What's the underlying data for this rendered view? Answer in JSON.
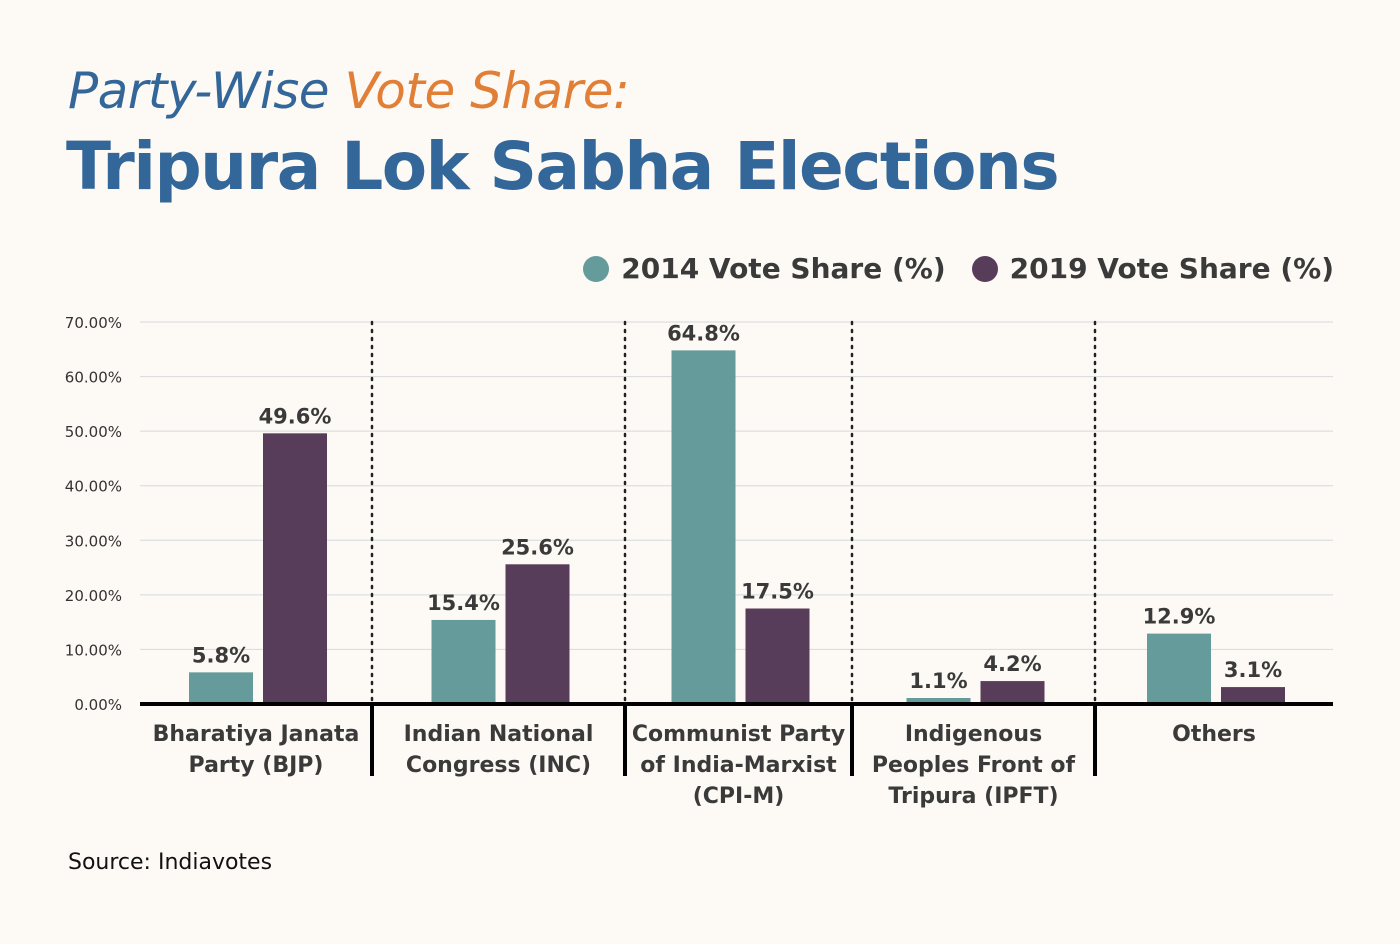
{
  "title": {
    "part1": "Party-Wise",
    "part2": "Vote Share:",
    "line2": "Tripura Lok Sabha Elections"
  },
  "colors": {
    "title_blue": "#336699",
    "title_orange": "#e07f35",
    "series_2014": "#659b9b",
    "series_2019": "#573d59",
    "text_dark": "#3a3a3a"
  },
  "source": "Source: Indiavotes",
  "chart_data": {
    "type": "bar",
    "categories": [
      [
        "Bharatiya Janata",
        "Party (BJP)"
      ],
      [
        "Indian National",
        "Congress (INC)"
      ],
      [
        "Communist Party",
        "of India-Marxist",
        "(CPI-M)"
      ],
      [
        "Indigenous",
        "Peoples Front of",
        "Tripura (IPFT)"
      ],
      [
        "Others"
      ]
    ],
    "series": [
      {
        "name": "2014 Vote Share (%)",
        "values": [
          5.8,
          15.4,
          64.8,
          1.1,
          12.9
        ],
        "labels": [
          "5.8%",
          "15.4%",
          "64.8%",
          "1.1%",
          "12.9%"
        ]
      },
      {
        "name": "2019 Vote Share (%)",
        "values": [
          49.6,
          25.6,
          17.5,
          4.2,
          3.1
        ],
        "labels": [
          "49.6%",
          "25.6%",
          "17.5%",
          "4.2%",
          "3.1%"
        ]
      }
    ],
    "y_ticks": [
      "0.00%",
      "10.00%",
      "20.00%",
      "30.00%",
      "40.00%",
      "50.00%",
      "60.00%",
      "70.00%"
    ],
    "ylim": [
      0,
      70
    ],
    "grid": true,
    "legend_position": "top-right"
  }
}
